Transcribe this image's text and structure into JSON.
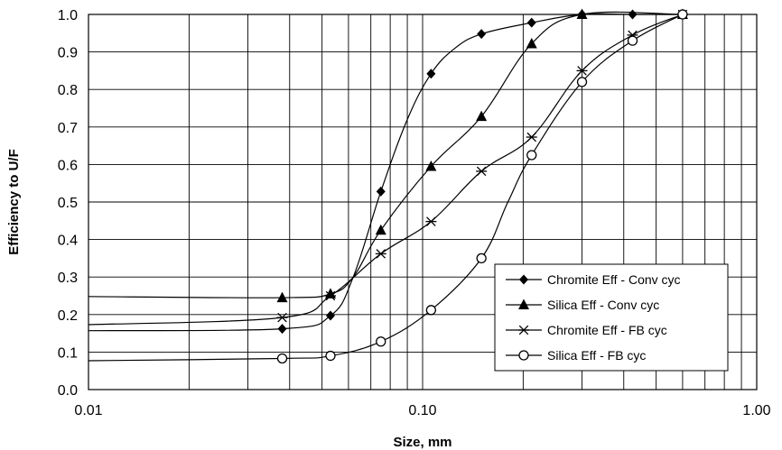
{
  "chart_data": {
    "type": "line",
    "xscale": "log",
    "xlim": [
      0.01,
      1.0
    ],
    "ylim": [
      0.0,
      1.0
    ],
    "grid": true,
    "xlabel": "Size, mm",
    "ylabel": "Efficiency to U/F",
    "xticks": [
      {
        "value": 0.01,
        "label": "0.01"
      },
      {
        "value": 0.1,
        "label": "0.10"
      },
      {
        "value": 1.0,
        "label": "1.00"
      }
    ],
    "yticks": [
      {
        "value": 0.0,
        "label": "0.0"
      },
      {
        "value": 0.1,
        "label": "0.1"
      },
      {
        "value": 0.2,
        "label": "0.2"
      },
      {
        "value": 0.3,
        "label": "0.3"
      },
      {
        "value": 0.4,
        "label": "0.4"
      },
      {
        "value": 0.5,
        "label": "0.5"
      },
      {
        "value": 0.6,
        "label": "0.6"
      },
      {
        "value": 0.7,
        "label": "0.7"
      },
      {
        "value": 0.8,
        "label": "0.8"
      },
      {
        "value": 0.9,
        "label": "0.9"
      },
      {
        "value": 1.0,
        "label": "1.0"
      }
    ],
    "legend_position": "bottom-right",
    "series": [
      {
        "name": "Chromite Eff - Conv cyc",
        "marker": "diamond",
        "points": [
          [
            0.038,
            0.162
          ],
          [
            0.053,
            0.197
          ],
          [
            0.075,
            0.528
          ],
          [
            0.106,
            0.842
          ],
          [
            0.15,
            0.948
          ],
          [
            0.212,
            0.978
          ],
          [
            0.3,
            1.0
          ],
          [
            0.425,
            1.0
          ],
          [
            0.6,
            1.0
          ]
        ],
        "curve": [
          [
            0.01,
            0.157
          ],
          [
            0.038,
            0.162
          ],
          [
            0.053,
            0.197
          ],
          [
            0.062,
            0.3
          ],
          [
            0.075,
            0.528
          ],
          [
            0.09,
            0.72
          ],
          [
            0.106,
            0.842
          ],
          [
            0.125,
            0.91
          ],
          [
            0.15,
            0.948
          ],
          [
            0.212,
            0.978
          ],
          [
            0.3,
            1.0
          ],
          [
            0.425,
            1.0
          ],
          [
            0.6,
            1.0
          ]
        ]
      },
      {
        "name": "Silica Eff - Conv cyc",
        "marker": "triangle",
        "points": [
          [
            0.038,
            0.245
          ],
          [
            0.053,
            0.255
          ],
          [
            0.075,
            0.425
          ],
          [
            0.106,
            0.595
          ],
          [
            0.15,
            0.728
          ],
          [
            0.212,
            0.922
          ],
          [
            0.3,
            1.0
          ],
          [
            0.6,
            1.0
          ]
        ],
        "curve": [
          [
            0.01,
            0.248
          ],
          [
            0.038,
            0.245
          ],
          [
            0.053,
            0.255
          ],
          [
            0.062,
            0.3
          ],
          [
            0.075,
            0.425
          ],
          [
            0.106,
            0.595
          ],
          [
            0.15,
            0.728
          ],
          [
            0.212,
            0.922
          ],
          [
            0.3,
            1.0
          ],
          [
            0.6,
            1.0
          ]
        ]
      },
      {
        "name": "Chromite Eff - FB cyc",
        "marker": "asterisk",
        "points": [
          [
            0.038,
            0.192
          ],
          [
            0.053,
            0.25
          ],
          [
            0.075,
            0.362
          ],
          [
            0.106,
            0.448
          ],
          [
            0.15,
            0.582
          ],
          [
            0.212,
            0.673
          ],
          [
            0.3,
            0.85
          ],
          [
            0.425,
            0.945
          ],
          [
            0.6,
            1.0
          ]
        ],
        "curve": [
          [
            0.01,
            0.173
          ],
          [
            0.038,
            0.192
          ],
          [
            0.053,
            0.25
          ],
          [
            0.075,
            0.362
          ],
          [
            0.106,
            0.448
          ],
          [
            0.15,
            0.582
          ],
          [
            0.212,
            0.673
          ],
          [
            0.3,
            0.85
          ],
          [
            0.425,
            0.945
          ],
          [
            0.6,
            1.0
          ]
        ]
      },
      {
        "name": "Silica Eff - FB cyc",
        "marker": "circle",
        "points": [
          [
            0.038,
            0.083
          ],
          [
            0.053,
            0.09
          ],
          [
            0.075,
            0.128
          ],
          [
            0.106,
            0.212
          ],
          [
            0.15,
            0.35
          ],
          [
            0.212,
            0.625
          ],
          [
            0.3,
            0.82
          ],
          [
            0.425,
            0.93
          ],
          [
            0.6,
            1.0
          ]
        ],
        "curve": [
          [
            0.01,
            0.077
          ],
          [
            0.038,
            0.083
          ],
          [
            0.053,
            0.09
          ],
          [
            0.075,
            0.128
          ],
          [
            0.106,
            0.212
          ],
          [
            0.15,
            0.35
          ],
          [
            0.18,
            0.5
          ],
          [
            0.212,
            0.625
          ],
          [
            0.3,
            0.82
          ],
          [
            0.425,
            0.93
          ],
          [
            0.6,
            1.0
          ]
        ]
      }
    ]
  }
}
